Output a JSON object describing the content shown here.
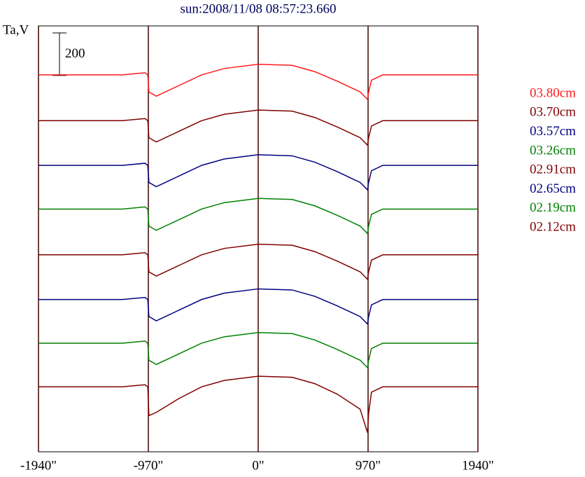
{
  "chart_data": {
    "type": "line",
    "title": "sun:2008/11/08 08:57:23.660",
    "ylabel": "Ta,V",
    "scale_bar": 200,
    "x": [
      -1940,
      -1200,
      -1000,
      -975,
      -965,
      -900,
      -700,
      -500,
      -300,
      0,
      300,
      500,
      700,
      900,
      965,
      975,
      1000,
      1100,
      1940
    ],
    "xlim": [
      -1940,
      1940
    ],
    "xticks": [
      {
        "value": -1940,
        "label": "-1940\""
      },
      {
        "value": -970,
        "label": "-970\""
      },
      {
        "value": 0,
        "label": "0\""
      },
      {
        "value": 970,
        "label": "970\""
      },
      {
        "value": 1940,
        "label": "1940\""
      }
    ],
    "ylim": [
      0,
      2000
    ],
    "grid": true,
    "series": [
      {
        "name": "03.80cm",
        "color": "#ff1a1a",
        "values": [
          1770,
          1770,
          1780,
          1770,
          1690,
          1670,
          1720,
          1770,
          1800,
          1820,
          1815,
          1785,
          1740,
          1690,
          1655,
          1690,
          1745,
          1770,
          1770
        ]
      },
      {
        "name": "03.70cm",
        "color": "#800000",
        "values": [
          1555,
          1555,
          1565,
          1555,
          1475,
          1455,
          1505,
          1555,
          1585,
          1605,
          1600,
          1570,
          1525,
          1475,
          1440,
          1475,
          1530,
          1555,
          1555
        ]
      },
      {
        "name": "03.57cm",
        "color": "#000080",
        "values": [
          1345,
          1345,
          1355,
          1345,
          1265,
          1245,
          1295,
          1345,
          1375,
          1395,
          1390,
          1360,
          1315,
          1265,
          1230,
          1265,
          1320,
          1345,
          1345
        ]
      },
      {
        "name": "03.26cm",
        "color": "#008000",
        "values": [
          1140,
          1140,
          1150,
          1140,
          1060,
          1040,
          1090,
          1140,
          1170,
          1190,
          1185,
          1155,
          1110,
          1060,
          1025,
          1060,
          1115,
          1140,
          1140
        ]
      },
      {
        "name": "02.91cm",
        "color": "#800000",
        "values": [
          925,
          925,
          935,
          925,
          845,
          825,
          875,
          925,
          955,
          975,
          970,
          940,
          895,
          845,
          810,
          845,
          900,
          925,
          925
        ]
      },
      {
        "name": "02.65cm",
        "color": "#000080",
        "values": [
          715,
          715,
          725,
          715,
          635,
          615,
          665,
          715,
          745,
          765,
          760,
          730,
          685,
          635,
          600,
          635,
          690,
          715,
          715
        ]
      },
      {
        "name": "02.19cm",
        "color": "#008000",
        "values": [
          510,
          510,
          520,
          510,
          430,
          410,
          460,
          510,
          540,
          560,
          555,
          525,
          480,
          430,
          395,
          430,
          485,
          510,
          510
        ]
      },
      {
        "name": "02.12cm",
        "color": "#800000",
        "values": [
          305,
          305,
          315,
          305,
          170,
          185,
          250,
          305,
          335,
          355,
          350,
          320,
          270,
          200,
          90,
          180,
          280,
          305,
          305
        ]
      }
    ]
  }
}
